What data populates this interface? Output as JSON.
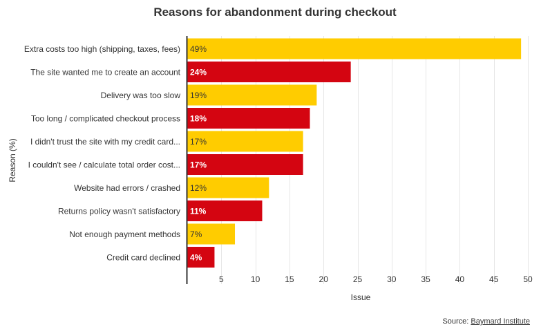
{
  "chart_data": {
    "type": "bar",
    "orientation": "horizontal",
    "title": "Reasons for abandonment during checkout",
    "xlabel": "Issue",
    "ylabel": "Reason (%)",
    "xlim": [
      0,
      50
    ],
    "xticks": [
      5,
      10,
      15,
      20,
      25,
      30,
      35,
      40,
      45,
      50
    ],
    "grid": true,
    "categories": [
      "Extra costs too high (shipping, taxes, fees)",
      "The site wanted me to create an account",
      "Delivery was too slow",
      "Too long / complicated checkout process",
      "I didn't trust the site with my credit card...",
      "I couldn't see / calculate total order cost...",
      "Website had errors / crashed",
      "Returns policy wasn't satisfactory",
      "Not enough payment methods",
      "Credit card declined"
    ],
    "values": [
      49,
      24,
      19,
      18,
      17,
      17,
      12,
      11,
      7,
      4
    ],
    "value_labels": [
      "49%",
      "24%",
      "19%",
      "18%",
      "17%",
      "17%",
      "12%",
      "11%",
      "7%",
      "4%"
    ],
    "colors": [
      "#FFCC00",
      "#D40511"
    ]
  },
  "source": {
    "prefix": "Source: ",
    "link_text": "Baymard Institute"
  }
}
